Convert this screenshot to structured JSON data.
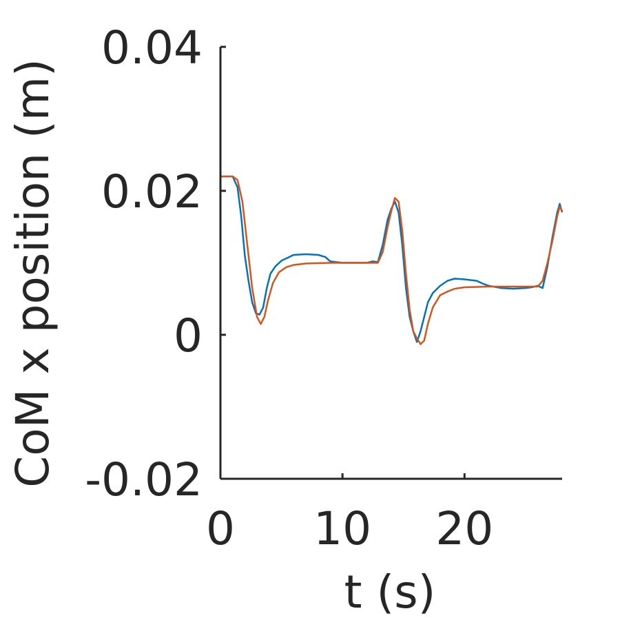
{
  "chart_data": {
    "type": "line",
    "title": "",
    "xlabel": "t (s)",
    "ylabel": "CoM x position (m)",
    "xlim": [
      0,
      28
    ],
    "ylim": [
      -0.02,
      0.04
    ],
    "xticks": [
      0,
      10,
      20
    ],
    "xtick_labels": [
      "0",
      "10",
      "20"
    ],
    "yticks": [
      -0.02,
      0,
      0.02,
      0.04
    ],
    "ytick_labels": [
      "-0.02",
      "0",
      "0.02",
      "0.04"
    ],
    "grid": false,
    "legend": "none",
    "series": [
      {
        "color": "#0072BD",
        "x": [
          0,
          1.0,
          1.4,
          1.7,
          2.0,
          2.3,
          2.6,
          2.9,
          3.2,
          3.5,
          3.8,
          4.1,
          4.5,
          5.0,
          5.5,
          6.0,
          7.0,
          8.0,
          8.6,
          9.0,
          10.0,
          11.0,
          12.0,
          12.5,
          12.9,
          13.3,
          13.7,
          14.0,
          14.3,
          14.6,
          14.9,
          15.2,
          15.5,
          15.8,
          16.1,
          16.4,
          16.7,
          17.0,
          17.4,
          18.0,
          18.6,
          19.2,
          20.0,
          21.0,
          21.5,
          22.0,
          23.0,
          24.0,
          25.0,
          25.5,
          26.0,
          26.4,
          26.8,
          27.2,
          27.6,
          27.8,
          28.0
        ],
        "y": [
          0.022,
          0.022,
          0.0205,
          0.0165,
          0.011,
          0.0075,
          0.0045,
          0.003,
          0.0028,
          0.0038,
          0.0065,
          0.0085,
          0.0095,
          0.0103,
          0.0107,
          0.0111,
          0.0112,
          0.0111,
          0.0108,
          0.0102,
          0.01,
          0.01,
          0.01,
          0.0102,
          0.0101,
          0.0125,
          0.016,
          0.0175,
          0.0185,
          0.017,
          0.0125,
          0.0065,
          0.0025,
          0.0005,
          -0.001,
          0.0005,
          0.0025,
          0.0045,
          0.0058,
          0.0068,
          0.0075,
          0.0078,
          0.0077,
          0.0075,
          0.0071,
          0.0068,
          0.0065,
          0.0064,
          0.0065,
          0.0066,
          0.0068,
          0.0065,
          0.0095,
          0.0135,
          0.017,
          0.0182,
          0.017
        ]
      },
      {
        "color": "#D95319",
        "x": [
          0,
          1.0,
          1.4,
          1.8,
          2.2,
          2.6,
          3.0,
          3.3,
          3.6,
          3.9,
          4.3,
          4.8,
          5.4,
          6.0,
          7.0,
          9.0,
          11.0,
          12.9,
          13.3,
          13.7,
          14.0,
          14.3,
          14.6,
          14.9,
          15.2,
          15.5,
          15.8,
          16.1,
          16.4,
          16.7,
          17.0,
          17.4,
          18.0,
          18.6,
          19.2,
          20.0,
          22.0,
          24.0,
          26.0,
          26.4,
          26.8,
          27.2,
          27.6,
          27.8,
          28.0
        ],
        "y": [
          0.022,
          0.022,
          0.0215,
          0.0185,
          0.0125,
          0.0065,
          0.0025,
          0.0015,
          0.0025,
          0.0048,
          0.0072,
          0.0087,
          0.0094,
          0.0097,
          0.0099,
          0.01,
          0.01,
          0.01,
          0.0115,
          0.015,
          0.0172,
          0.019,
          0.0185,
          0.0145,
          0.0085,
          0.0035,
          0.0005,
          -0.0005,
          -0.0013,
          -0.0008,
          0.0015,
          0.0038,
          0.0055,
          0.006,
          0.0064,
          0.0066,
          0.0067,
          0.0067,
          0.0067,
          0.0075,
          0.01,
          0.013,
          0.0165,
          0.0178,
          0.0172
        ]
      }
    ]
  }
}
